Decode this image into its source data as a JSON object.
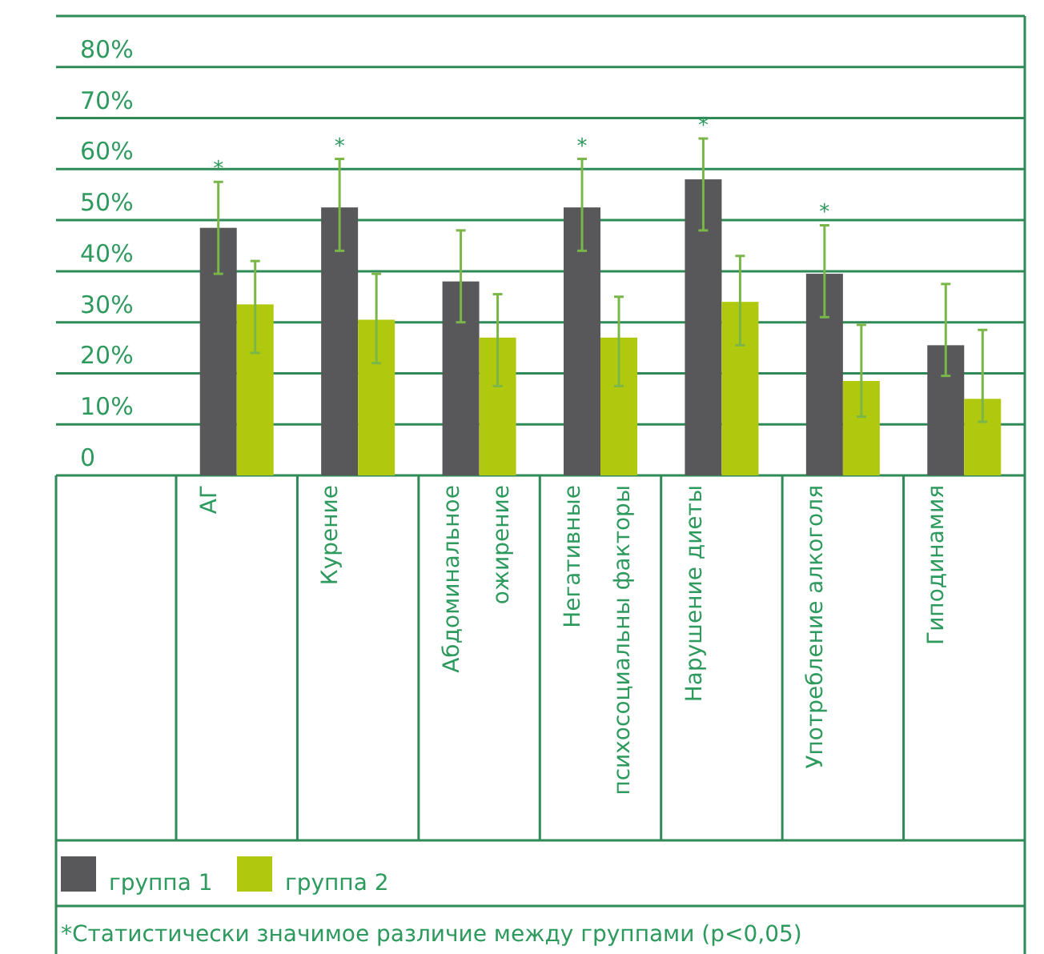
{
  "chart_data": {
    "type": "bar",
    "categories": [
      "АГ",
      "Курение",
      "Абдоминальное\nожирение",
      "Негативные\nпсихосоциальны факторы",
      "Нарушение диеты",
      "Употребление алкоголя",
      "Гиподинамия"
    ],
    "series": [
      {
        "name": "группа 1",
        "color": "#58585a",
        "value_labels": [
          "*",
          "*",
          null,
          "*",
          "*",
          "*",
          null
        ],
        "values": [
          48.5,
          52.5,
          38,
          52.5,
          58,
          39.5,
          25.5
        ],
        "errors": [
          [
            39.5,
            57.5
          ],
          [
            44,
            62
          ],
          [
            30,
            48
          ],
          [
            44,
            62
          ],
          [
            48,
            66
          ],
          [
            31,
            49
          ],
          [
            19.5,
            37.5
          ]
        ]
      },
      {
        "name": "группа 2",
        "color": "#b0c90e",
        "values": [
          33.5,
          30.5,
          27,
          27,
          34,
          18.5,
          15
        ],
        "errors": [
          [
            24,
            42
          ],
          [
            22,
            39.5
          ],
          [
            17.5,
            35.5
          ],
          [
            17.5,
            35
          ],
          [
            25.5,
            43
          ],
          [
            11.5,
            29.5
          ],
          [
            10.5,
            28.5
          ]
        ]
      }
    ],
    "ylim": [
      0,
      90
    ],
    "yticks": [
      0,
      {
        "value": 10,
        "label": "10%"
      },
      {
        "value": 20,
        "label": "20%"
      },
      {
        "value": 30,
        "label": "30%"
      },
      {
        "value": 40,
        "label": "40%"
      },
      {
        "value": 50,
        "label": "50%"
      },
      {
        "value": 60,
        "label": "60%"
      },
      {
        "value": 70,
        "label": "70%"
      },
      {
        "value": 80,
        "label": "80%"
      }
    ],
    "grid": "y",
    "legend": "bottom",
    "annotations": [
      "*Статистически значимое различие между группами (p<0,05)"
    ]
  }
}
